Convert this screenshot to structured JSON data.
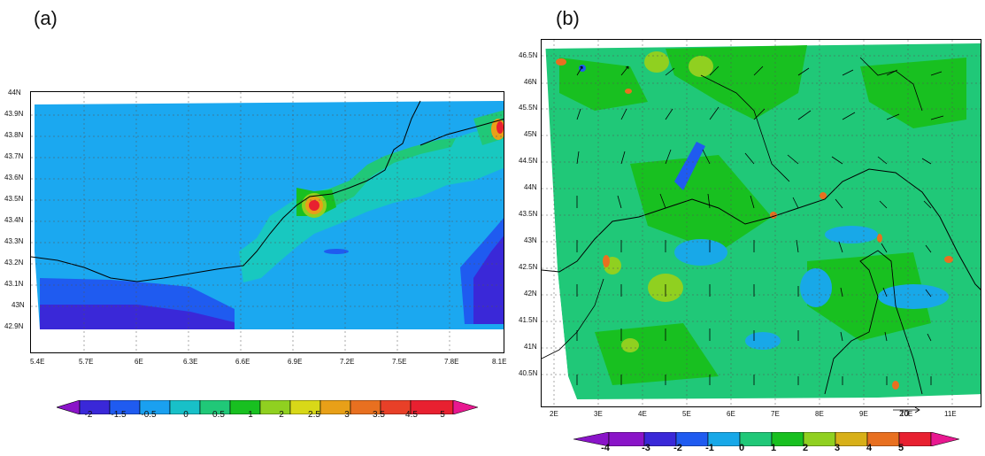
{
  "panel_a": {
    "label": "(a)",
    "lat_ticks": [
      "44N",
      "43.9N",
      "43.8N",
      "43.7N",
      "43.6N",
      "43.5N",
      "43.4N",
      "43.3N",
      "43.2N",
      "43.1N",
      "43N",
      "42.9N"
    ],
    "lon_ticks": [
      "5.4E",
      "5.7E",
      "6E",
      "6.3E",
      "6.6E",
      "6.9E",
      "7.2E",
      "7.5E",
      "7.8E",
      "8.1E"
    ],
    "colorbar": {
      "labels": [
        "-2",
        "-1.5",
        "-0.5",
        "0",
        "0.5",
        "1",
        "2",
        "2.5",
        "3",
        "3.5",
        "4.5",
        "5"
      ],
      "colors": [
        "#8a14c8",
        "#3a28d8",
        "#1f5bf0",
        "#1aa0f0",
        "#18c0c8",
        "#20c878",
        "#18c020",
        "#90d020",
        "#d8d818",
        "#e8a018",
        "#e87020",
        "#e82030",
        "#e81890"
      ]
    }
  },
  "panel_b": {
    "label": "(b)",
    "lat_ticks": [
      "46.5N",
      "46N",
      "45.5N",
      "45N",
      "44.5N",
      "44N",
      "43.5N",
      "43N",
      "42.5N",
      "42N",
      "41.5N",
      "41N",
      "40.5N"
    ],
    "lon_ticks": [
      "2E",
      "3E",
      "4E",
      "5E",
      "6E",
      "7E",
      "8E",
      "9E",
      "10E",
      "11E"
    ],
    "reference_vector": "20",
    "colorbar": {
      "labels": [
        "-4",
        "-3",
        "-2",
        "-1",
        "0",
        "1",
        "2",
        "3",
        "4",
        "5"
      ],
      "colors": [
        "#8a14c8",
        "#3a28d8",
        "#1f5bf0",
        "#18a8e8",
        "#20c878",
        "#18c020",
        "#90d020",
        "#d8b018",
        "#e87020",
        "#e82030",
        "#e81890"
      ]
    }
  }
}
